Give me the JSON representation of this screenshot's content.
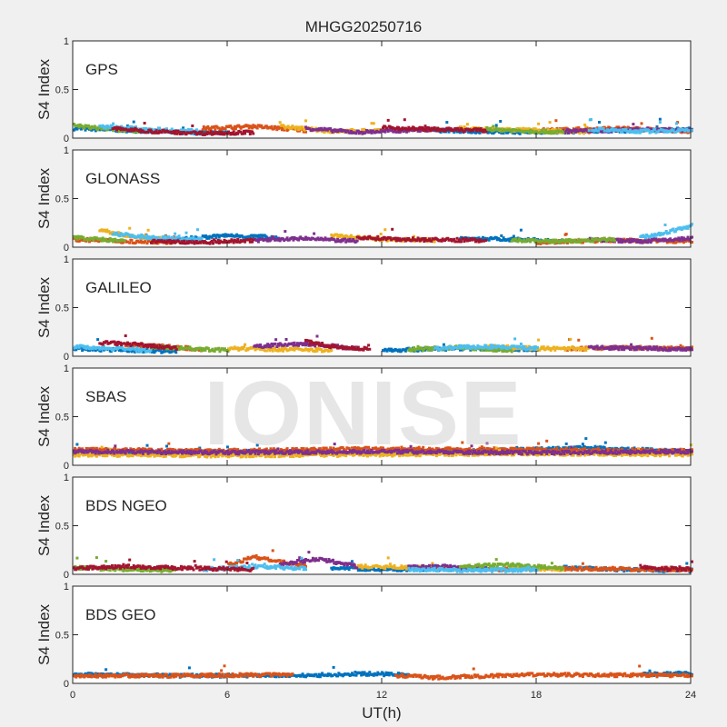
{
  "chart_data": {
    "type": "scatter",
    "title": "MHGG20250716",
    "xlabel": "UT(h)",
    "ylabel": "S4 Index",
    "xlim": [
      0,
      24
    ],
    "ylim": [
      0,
      1
    ],
    "xticks": [
      "0",
      "6",
      "12",
      "18",
      "24"
    ],
    "yticks": [
      "0",
      "0.5",
      "1"
    ],
    "watermark": "IONISE",
    "colors": [
      "#0072BD",
      "#D95319",
      "#EDB120",
      "#7E2F8E",
      "#77AC30",
      "#4DBEEE",
      "#A2142F"
    ],
    "panels": [
      {
        "label": "GPS",
        "series": [
          {
            "arcs": [
              {
                "x": [
                  0,
                  2,
                  4,
                  6
                ],
                "y": [
                  0.1,
                  0.08,
                  0.06,
                  0.05
                ]
              },
              {
                "x": [
                  14,
                  17,
                  20,
                  24
                ],
                "y": [
                  0.08,
                  0.06,
                  0.07,
                  0.09
                ]
              }
            ]
          },
          {
            "arcs": [
              {
                "x": [
                  5,
                  7,
                  9
                ],
                "y": [
                  0.1,
                  0.12,
                  0.08
                ]
              },
              {
                "x": [
                  18,
                  21,
                  24
                ],
                "y": [
                  0.08,
                  0.1,
                  0.07
                ]
              }
            ]
          },
          {
            "arcs": [
              {
                "x": [
                  8,
                  10,
                  12
                ],
                "y": [
                  0.12,
                  0.07,
                  0.08
                ]
              },
              {
                "x": [
                  15,
                  18,
                  20
                ],
                "y": [
                  0.1,
                  0.08,
                  0.06
                ]
              }
            ]
          },
          {
            "arcs": [
              {
                "x": [
                  9,
                  11,
                  14
                ],
                "y": [
                  0.1,
                  0.06,
                  0.09
                ]
              },
              {
                "x": [
                  19,
                  22,
                  24
                ],
                "y": [
                  0.07,
                  0.09,
                  0.08
                ]
              }
            ]
          },
          {
            "arcs": [
              {
                "x": [
                  0,
                  1,
                  2.5
                ],
                "y": [
                  0.13,
                  0.1,
                  0.07
                ]
              },
              {
                "x": [
                  16,
                  17,
                  19
                ],
                "y": [
                  0.09,
                  0.08,
                  0.06
                ]
              }
            ]
          },
          {
            "arcs": [
              {
                "x": [
                  1,
                  3,
                  5
                ],
                "y": [
                  0.12,
                  0.09,
                  0.07
                ]
              },
              {
                "x": [
                  20,
                  22,
                  24
                ],
                "y": [
                  0.09,
                  0.07,
                  0.08
                ]
              }
            ]
          },
          {
            "arcs": [
              {
                "x": [
                  1.5,
                  3,
                  5,
                  7
                ],
                "y": [
                  0.1,
                  0.07,
                  0.05,
                  0.06
                ]
              },
              {
                "x": [
                  12,
                  14,
                  16
                ],
                "y": [
                  0.11,
                  0.09,
                  0.08
                ]
              }
            ]
          }
        ]
      },
      {
        "label": "GLONASS",
        "series": [
          {
            "arcs": [
              {
                "x": [
                  4,
                  6,
                  8
                ],
                "y": [
                  0.08,
                  0.12,
                  0.1
                ]
              },
              {
                "x": [
                  15,
                  17,
                  19
                ],
                "y": [
                  0.09,
                  0.08,
                  0.06
                ]
              }
            ]
          },
          {
            "arcs": [
              {
                "x": [
                  0,
                  2,
                  4
                ],
                "y": [
                  0.08,
                  0.06,
                  0.05
                ]
              },
              {
                "x": [
                  18,
                  21,
                  24
                ],
                "y": [
                  0.05,
                  0.07,
                  0.06
                ]
              }
            ]
          },
          {
            "arcs": [
              {
                "x": [
                  1,
                  2,
                  3.5
                ],
                "y": [
                  0.18,
                  0.12,
                  0.08
                ]
              },
              {
                "x": [
                  10,
                  12,
                  14
                ],
                "y": [
                  0.12,
                  0.08,
                  0.07
                ]
              }
            ]
          },
          {
            "arcs": [
              {
                "x": [
                  7,
                  9,
                  11
                ],
                "y": [
                  0.07,
                  0.09,
                  0.06
                ]
              },
              {
                "x": [
                  20,
                  22,
                  24
                ],
                "y": [
                  0.08,
                  0.06,
                  0.09
                ]
              }
            ]
          },
          {
            "arcs": [
              {
                "x": [
                  0,
                  1,
                  2
                ],
                "y": [
                  0.1,
                  0.08,
                  0.06
                ]
              },
              {
                "x": [
                  17,
                  19,
                  21
                ],
                "y": [
                  0.07,
                  0.06,
                  0.08
                ]
              }
            ]
          },
          {
            "arcs": [
              {
                "x": [
                  1.5,
                  3,
                  5
                ],
                "y": [
                  0.14,
                  0.1,
                  0.08
                ]
              },
              {
                "x": [
                  22,
                  23,
                  24
                ],
                "y": [
                  0.1,
                  0.15,
                  0.22
                ]
              }
            ]
          },
          {
            "arcs": [
              {
                "x": [
                  3,
                  5,
                  7
                ],
                "y": [
                  0.06,
                  0.05,
                  0.07
                ]
              },
              {
                "x": [
                  11,
                  13,
                  16
                ],
                "y": [
                  0.1,
                  0.08,
                  0.07
                ]
              }
            ]
          }
        ]
      },
      {
        "label": "GALILEO",
        "series": [
          {
            "arcs": [
              {
                "x": [
                  0,
                  2,
                  4
                ],
                "y": [
                  0.08,
                  0.06,
                  0.05
                ]
              },
              {
                "x": [
                  12,
                  15,
                  18
                ],
                "y": [
                  0.06,
                  0.08,
                  0.07
                ]
              }
            ]
          },
          {
            "arcs": [
              {
                "x": [
                  2,
                  3.5,
                  5
                ],
                "y": [
                  0.12,
                  0.1,
                  0.07
                ]
              },
              {
                "x": [
                  19,
                  21,
                  24
                ],
                "y": [
                  0.07,
                  0.09,
                  0.08
                ]
              }
            ]
          },
          {
            "arcs": [
              {
                "x": [
                  6,
                  8,
                  10
                ],
                "y": [
                  0.08,
                  0.07,
                  0.06
                ]
              },
              {
                "x": [
                  16,
                  18,
                  20
                ],
                "y": [
                  0.1,
                  0.08,
                  0.07
                ]
              }
            ]
          },
          {
            "arcs": [
              {
                "x": [
                  7,
                  9,
                  11
                ],
                "y": [
                  0.1,
                  0.13,
                  0.08
                ]
              },
              {
                "x": [
                  20,
                  22,
                  24
                ],
                "y": [
                  0.09,
                  0.08,
                  0.07
                ]
              }
            ]
          },
          {
            "arcs": [
              {
                "x": [
                  3,
                  4.5,
                  6
                ],
                "y": [
                  0.1,
                  0.08,
                  0.06
                ]
              },
              {
                "x": [
                  13,
                  15,
                  17
                ],
                "y": [
                  0.07,
                  0.09,
                  0.06
                ]
              }
            ]
          },
          {
            "arcs": [
              {
                "x": [
                  0,
                  1.5,
                  3
                ],
                "y": [
                  0.1,
                  0.08,
                  0.06
                ]
              },
              {
                "x": [
                  14,
                  16,
                  18
                ],
                "y": [
                  0.08,
                  0.1,
                  0.08
                ]
              }
            ]
          },
          {
            "arcs": [
              {
                "x": [
                  1,
                  2.5,
                  4
                ],
                "y": [
                  0.14,
                  0.12,
                  0.08
                ]
              },
              {
                "x": [
                  9,
                  10,
                  11.5
                ],
                "y": [
                  0.15,
                  0.1,
                  0.07
                ]
              }
            ]
          }
        ]
      },
      {
        "label": "SBAS",
        "series": [
          {
            "arcs": [
              {
                "x": [
                  0,
                  6,
                  12,
                  16,
                  20,
                  24
                ],
                "y": [
                  0.13,
                  0.14,
                  0.13,
                  0.15,
                  0.18,
                  0.14
                ]
              }
            ]
          },
          {
            "arcs": [
              {
                "x": [
                  0,
                  6,
                  12,
                  18,
                  24
                ],
                "y": [
                  0.16,
                  0.15,
                  0.17,
                  0.16,
                  0.15
                ]
              }
            ]
          },
          {
            "arcs": [
              {
                "x": [
                  0,
                  6,
                  12,
                  18,
                  24
                ],
                "y": [
                  0.11,
                  0.1,
                  0.11,
                  0.12,
                  0.11
                ]
              }
            ]
          },
          {
            "arcs": [
              {
                "x": [
                  0,
                  6,
                  12,
                  18,
                  24
                ],
                "y": [
                  0.14,
                  0.13,
                  0.14,
                  0.13,
                  0.14
                ]
              }
            ]
          }
        ]
      },
      {
        "label": "BDS NGEO",
        "series": [
          {
            "arcs": [
              {
                "x": [
                  10,
                  13,
                  16
                ],
                "y": [
                  0.06,
                  0.05,
                  0.06
                ]
              },
              {
                "x": [
                  19,
                  21,
                  24
                ],
                "y": [
                  0.07,
                  0.05,
                  0.04
                ]
              }
            ]
          },
          {
            "arcs": [
              {
                "x": [
                  6,
                  7,
                  9
                ],
                "y": [
                  0.1,
                  0.18,
                  0.08
                ]
              },
              {
                "x": [
                  16,
                  19,
                  24
                ],
                "y": [
                  0.05,
                  0.06,
                  0.05
                ]
              }
            ]
          },
          {
            "arcs": [
              {
                "x": [
                  11,
                  13,
                  15
                ],
                "y": [
                  0.08,
                  0.07,
                  0.06
                ]
              },
              {
                "x": [
                  17,
                  18,
                  19
                ],
                "y": [
                  0.07,
                  0.06,
                  0.05
                ]
              }
            ]
          },
          {
            "arcs": [
              {
                "x": [
                  8,
                  9.5,
                  11
                ],
                "y": [
                  0.1,
                  0.16,
                  0.08
                ]
              },
              {
                "x": [
                  13,
                  14.5,
                  16
                ],
                "y": [
                  0.07,
                  0.08,
                  0.05
                ]
              }
            ]
          },
          {
            "arcs": [
              {
                "x": [
                  0,
                  2,
                  4
                ],
                "y": [
                  0.07,
                  0.05,
                  0.04
                ]
              },
              {
                "x": [
                  15,
                  17,
                  19
                ],
                "y": [
                  0.08,
                  0.1,
                  0.06
                ]
              }
            ]
          },
          {
            "arcs": [
              {
                "x": [
                  5,
                  7,
                  9
                ],
                "y": [
                  0.05,
                  0.08,
                  0.06
                ]
              },
              {
                "x": [
                  13,
                  16,
                  18
                ],
                "y": [
                  0.05,
                  0.04,
                  0.05
                ]
              }
            ]
          },
          {
            "arcs": [
              {
                "x": [
                  0,
                  2,
                  5,
                  7
                ],
                "y": [
                  0.06,
                  0.08,
                  0.06,
                  0.05
                ]
              },
              {
                "x": [
                  22,
                  23,
                  24
                ],
                "y": [
                  0.08,
                  0.06,
                  0.05
                ]
              }
            ]
          }
        ]
      },
      {
        "label": "BDS GEO",
        "series": [
          {
            "arcs": [
              {
                "x": [
                  0,
                  4,
                  9,
                  11,
                  13
                ],
                "y": [
                  0.09,
                  0.08,
                  0.08,
                  0.1,
                  0.09
                ]
              },
              {
                "x": [
                  22,
                  23,
                  24
                ],
                "y": [
                  0.09,
                  0.1,
                  0.1
                ]
              }
            ]
          },
          {
            "arcs": [
              {
                "x": [
                  0,
                  4,
                  8.5
                ],
                "y": [
                  0.08,
                  0.08,
                  0.09
                ]
              },
              {
                "x": [
                  12.5,
                  14,
                  18,
                  24
                ],
                "y": [
                  0.08,
                  0.06,
                  0.09,
                  0.08
                ]
              }
            ]
          }
        ]
      }
    ]
  }
}
